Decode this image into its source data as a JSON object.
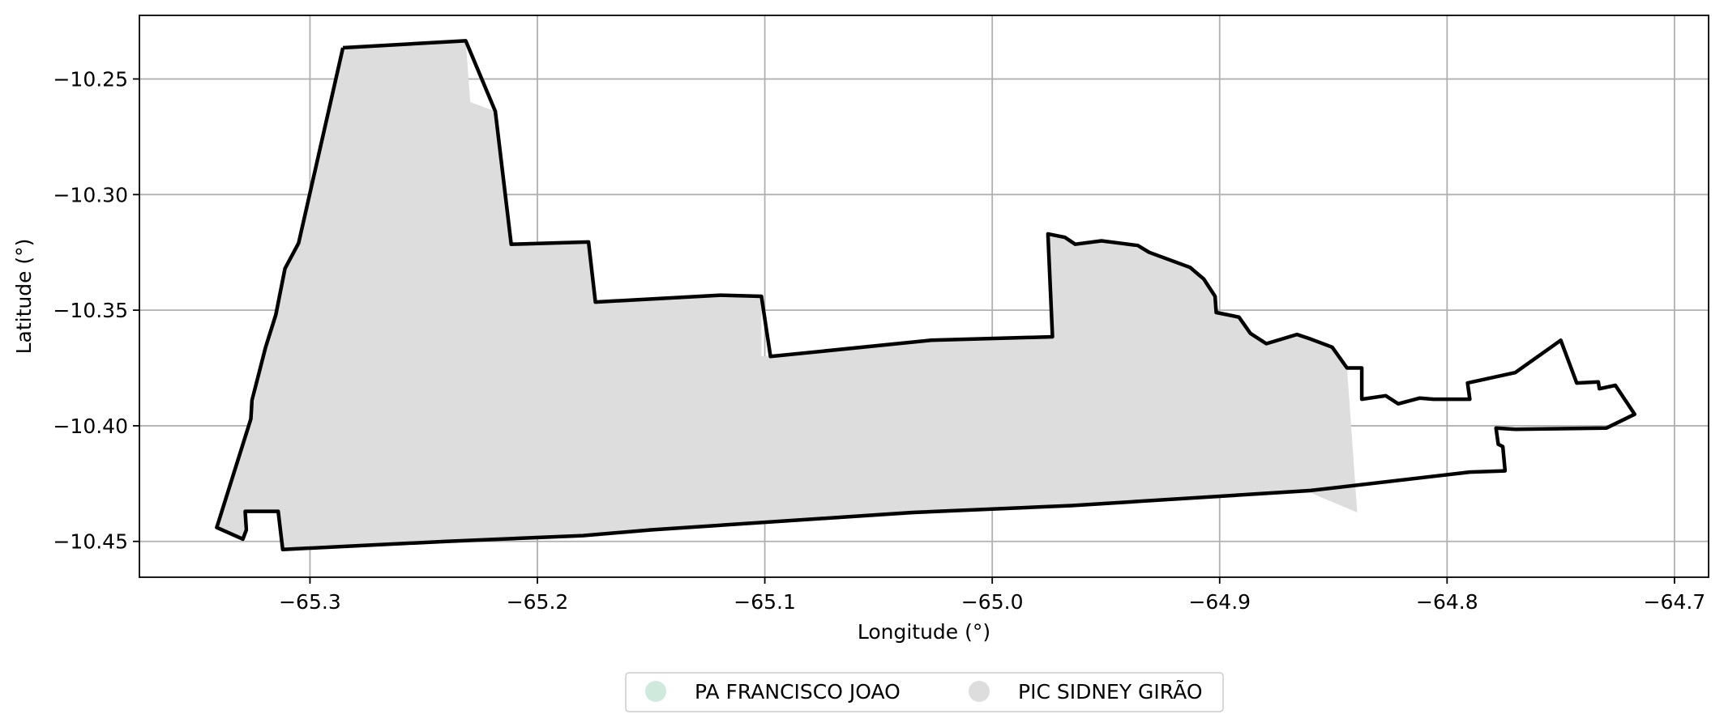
{
  "chart_data": {
    "type": "map",
    "xlabel": "Longitude (°)",
    "ylabel": "Latitude (°)",
    "xlim": [
      -65.375,
      -64.685
    ],
    "ylim": [
      -10.4655,
      -10.2225
    ],
    "xticks": [
      -65.3,
      -65.2,
      -65.1,
      -65.0,
      -64.9,
      -64.8,
      -64.7
    ],
    "xtick_labels": [
      "−65.3",
      "−65.2",
      "−65.1",
      "−65.0",
      "−64.9",
      "−64.8",
      "−64.7"
    ],
    "yticks": [
      -10.25,
      -10.3,
      -10.35,
      -10.4,
      -10.45
    ],
    "ytick_labels": [
      "−10.25",
      "−10.30",
      "−10.35",
      "−10.40",
      "−10.45"
    ],
    "grid": true,
    "legend_position": "bottom-center",
    "legend": [
      {
        "name": "PA FRANCISCO JOAO",
        "color": "#cfe9dd"
      },
      {
        "name": "PIC SIDNEY GIRÃO",
        "color": "#dddddd"
      }
    ],
    "fill_region": [
      [
        -65.2855,
        -10.2365
      ],
      [
        -65.2315,
        -10.2335
      ],
      [
        -65.2295,
        -10.26
      ],
      [
        -65.2185,
        -10.264
      ],
      [
        -65.2115,
        -10.3215
      ],
      [
        -65.1775,
        -10.3205
      ],
      [
        -65.1745,
        -10.3465
      ],
      [
        -65.1195,
        -10.3435
      ],
      [
        -65.1015,
        -10.344
      ],
      [
        -65.1015,
        -10.37
      ],
      [
        -65.027,
        -10.363
      ],
      [
        -64.9735,
        -10.3615
      ],
      [
        -64.9755,
        -10.317
      ],
      [
        -64.968,
        -10.3185
      ],
      [
        -64.9635,
        -10.3215
      ],
      [
        -64.952,
        -10.32
      ],
      [
        -64.942,
        -10.321
      ],
      [
        -64.931,
        -10.325
      ],
      [
        -64.913,
        -10.3315
      ],
      [
        -64.902,
        -10.344
      ],
      [
        -64.9015,
        -10.351
      ],
      [
        -64.8915,
        -10.353
      ],
      [
        -64.8865,
        -10.36
      ],
      [
        -64.8795,
        -10.3645
      ],
      [
        -64.866,
        -10.3605
      ],
      [
        -64.8505,
        -10.366
      ],
      [
        -64.844,
        -10.375
      ],
      [
        -64.8395,
        -10.4375
      ],
      [
        -64.86,
        -10.429
      ],
      [
        -64.965,
        -10.4345
      ],
      [
        -65.15,
        -10.445
      ],
      [
        -65.24,
        -10.45
      ],
      [
        -65.3,
        -10.452
      ],
      [
        -65.312,
        -10.4535
      ],
      [
        -65.314,
        -10.437
      ],
      [
        -65.3285,
        -10.437
      ],
      [
        -65.3295,
        -10.449
      ],
      [
        -65.341,
        -10.444
      ],
      [
        -65.326,
        -10.397
      ],
      [
        -65.3195,
        -10.366
      ],
      [
        -65.311,
        -10.332
      ],
      [
        -65.305,
        -10.321
      ]
    ],
    "outline": [
      [
        -65.2855,
        -10.2365
      ],
      [
        -65.2315,
        -10.2335
      ],
      [
        -65.2185,
        -10.264
      ],
      [
        -65.2115,
        -10.3215
      ],
      [
        -65.1775,
        -10.3205
      ],
      [
        -65.1745,
        -10.3465
      ],
      [
        -65.1195,
        -10.3435
      ],
      [
        -65.1015,
        -10.344
      ],
      [
        -65.0975,
        -10.37
      ],
      [
        -65.027,
        -10.363
      ],
      [
        -64.9735,
        -10.3615
      ],
      [
        -64.9755,
        -10.317
      ],
      [
        -64.968,
        -10.3185
      ],
      [
        -64.9635,
        -10.3215
      ],
      [
        -64.952,
        -10.32
      ],
      [
        -64.944,
        -10.321
      ],
      [
        -64.936,
        -10.322
      ],
      [
        -64.931,
        -10.325
      ],
      [
        -64.913,
        -10.3315
      ],
      [
        -64.907,
        -10.3365
      ],
      [
        -64.902,
        -10.344
      ],
      [
        -64.9015,
        -10.351
      ],
      [
        -64.8915,
        -10.353
      ],
      [
        -64.8865,
        -10.36
      ],
      [
        -64.8795,
        -10.3645
      ],
      [
        -64.871,
        -10.362
      ],
      [
        -64.866,
        -10.3605
      ],
      [
        -64.86,
        -10.3625
      ],
      [
        -64.8505,
        -10.366
      ],
      [
        -64.844,
        -10.375
      ],
      [
        -64.8375,
        -10.375
      ],
      [
        -64.8375,
        -10.3885
      ],
      [
        -64.827,
        -10.387
      ],
      [
        -64.8215,
        -10.3905
      ],
      [
        -64.812,
        -10.388
      ],
      [
        -64.806,
        -10.3885
      ],
      [
        -64.79,
        -10.3885
      ],
      [
        -64.791,
        -10.3815
      ],
      [
        -64.77,
        -10.377
      ],
      [
        -64.75,
        -10.363
      ],
      [
        -64.743,
        -10.3815
      ],
      [
        -64.7335,
        -10.381
      ],
      [
        -64.733,
        -10.384
      ],
      [
        -64.726,
        -10.3825
      ],
      [
        -64.7175,
        -10.395
      ],
      [
        -64.73,
        -10.401
      ],
      [
        -64.77,
        -10.4015
      ],
      [
        -64.7785,
        -10.401
      ],
      [
        -64.7775,
        -10.408
      ],
      [
        -64.7755,
        -10.409
      ],
      [
        -64.7745,
        -10.4195
      ],
      [
        -64.79,
        -10.42
      ],
      [
        -64.86,
        -10.428
      ],
      [
        -64.965,
        -10.4345
      ],
      [
        -65.035,
        -10.4375
      ],
      [
        -65.15,
        -10.445
      ],
      [
        -65.18,
        -10.4475
      ],
      [
        -65.24,
        -10.45
      ],
      [
        -65.312,
        -10.4535
      ],
      [
        -65.314,
        -10.437
      ],
      [
        -65.3285,
        -10.437
      ],
      [
        -65.328,
        -10.445
      ],
      [
        -65.3295,
        -10.449
      ],
      [
        -65.341,
        -10.444
      ],
      [
        -65.326,
        -10.397
      ],
      [
        -65.3255,
        -10.389
      ],
      [
        -65.3195,
        -10.366
      ],
      [
        -65.315,
        -10.352
      ],
      [
        -65.311,
        -10.332
      ],
      [
        -65.305,
        -10.321
      ],
      [
        -65.2855,
        -10.2365
      ]
    ]
  }
}
